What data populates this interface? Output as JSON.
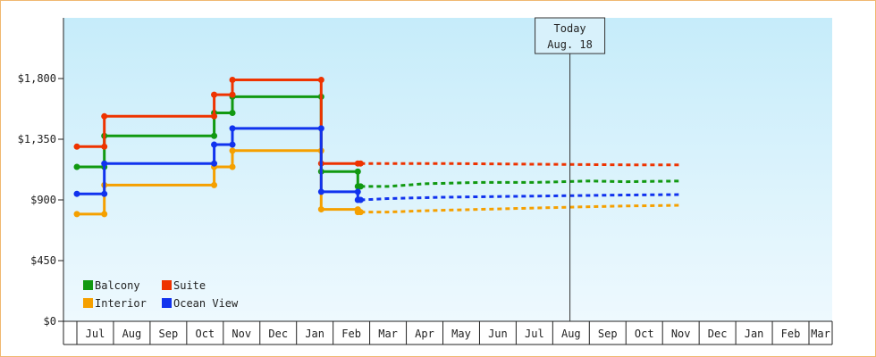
{
  "chart_data": {
    "type": "line",
    "title": "",
    "xlabel": "",
    "ylabel": "",
    "ylim": [
      0,
      2250
    ],
    "y_ticks": [
      "$0",
      "$450",
      "$900",
      "$1,350",
      "$1,800"
    ],
    "y_tick_values": [
      0,
      450,
      900,
      1350,
      1800
    ],
    "grid": false,
    "background": "gradient-blue",
    "legend_placement": "bottom-left",
    "months": [
      "Jul",
      "Aug",
      "Sep",
      "Oct",
      "Nov",
      "Dec",
      "Jan",
      "Feb",
      "Mar",
      "Apr",
      "May",
      "Jun",
      "Jul",
      "Aug",
      "Sep",
      "Oct",
      "Nov",
      "Dec",
      "Jan",
      "Feb",
      "Mar"
    ],
    "today": {
      "line1": "Today",
      "line2": "Aug. 18",
      "month_index": 13.47
    },
    "series": [
      {
        "name": "Balcony",
        "color": "#119911",
        "history": [
          [
            0,
            1145
          ],
          [
            1.5,
            1145
          ],
          [
            1.5,
            1375
          ],
          [
            7.5,
            1375
          ],
          [
            7.5,
            1545
          ],
          [
            8.5,
            1545
          ],
          [
            8.5,
            1665
          ],
          [
            13.35,
            1665
          ],
          [
            13.35,
            1110
          ],
          [
            15.35,
            1110
          ],
          [
            15.35,
            1000
          ],
          [
            15.5,
            1000
          ]
        ],
        "forecast": [
          [
            15.5,
            1000
          ],
          [
            17,
            1000
          ],
          [
            19,
            1020
          ],
          [
            22,
            1030
          ],
          [
            25,
            1030
          ],
          [
            28,
            1040
          ],
          [
            30,
            1035
          ],
          [
            33,
            1040
          ]
        ]
      },
      {
        "name": "Suite",
        "color": "#ee3300",
        "history": [
          [
            0,
            1295
          ],
          [
            1.5,
            1295
          ],
          [
            1.5,
            1520
          ],
          [
            7.5,
            1520
          ],
          [
            7.5,
            1680
          ],
          [
            8.5,
            1680
          ],
          [
            8.5,
            1790
          ],
          [
            13.35,
            1790
          ],
          [
            13.35,
            1170
          ],
          [
            15.35,
            1170
          ],
          [
            15.5,
            1170
          ]
        ],
        "forecast": [
          [
            15.5,
            1170
          ],
          [
            20,
            1170
          ],
          [
            25,
            1165
          ],
          [
            30,
            1160
          ],
          [
            33,
            1160
          ]
        ]
      },
      {
        "name": "Interior",
        "color": "#f5a000",
        "history": [
          [
            0,
            795
          ],
          [
            1.5,
            795
          ],
          [
            1.5,
            1010
          ],
          [
            7.5,
            1010
          ],
          [
            7.5,
            1145
          ],
          [
            8.5,
            1145
          ],
          [
            8.5,
            1265
          ],
          [
            13.35,
            1265
          ],
          [
            13.35,
            830
          ],
          [
            15.35,
            830
          ],
          [
            15.35,
            810
          ],
          [
            15.5,
            810
          ]
        ],
        "forecast": [
          [
            15.5,
            810
          ],
          [
            17,
            810
          ],
          [
            19,
            820
          ],
          [
            22,
            830
          ],
          [
            25,
            840
          ],
          [
            28,
            850
          ],
          [
            30,
            855
          ],
          [
            33,
            860
          ]
        ]
      },
      {
        "name": "Ocean View",
        "color": "#1133ee",
        "history": [
          [
            0,
            945
          ],
          [
            1.5,
            945
          ],
          [
            1.5,
            1170
          ],
          [
            7.5,
            1170
          ],
          [
            7.5,
            1310
          ],
          [
            8.5,
            1310
          ],
          [
            8.5,
            1430
          ],
          [
            13.35,
            1430
          ],
          [
            13.35,
            960
          ],
          [
            15.35,
            960
          ],
          [
            15.35,
            900
          ],
          [
            15.5,
            900
          ]
        ],
        "forecast": [
          [
            15.5,
            900
          ],
          [
            17,
            910
          ],
          [
            20,
            920
          ],
          [
            23,
            925
          ],
          [
            26,
            930
          ],
          [
            29,
            935
          ],
          [
            33,
            940
          ]
        ]
      }
    ]
  }
}
